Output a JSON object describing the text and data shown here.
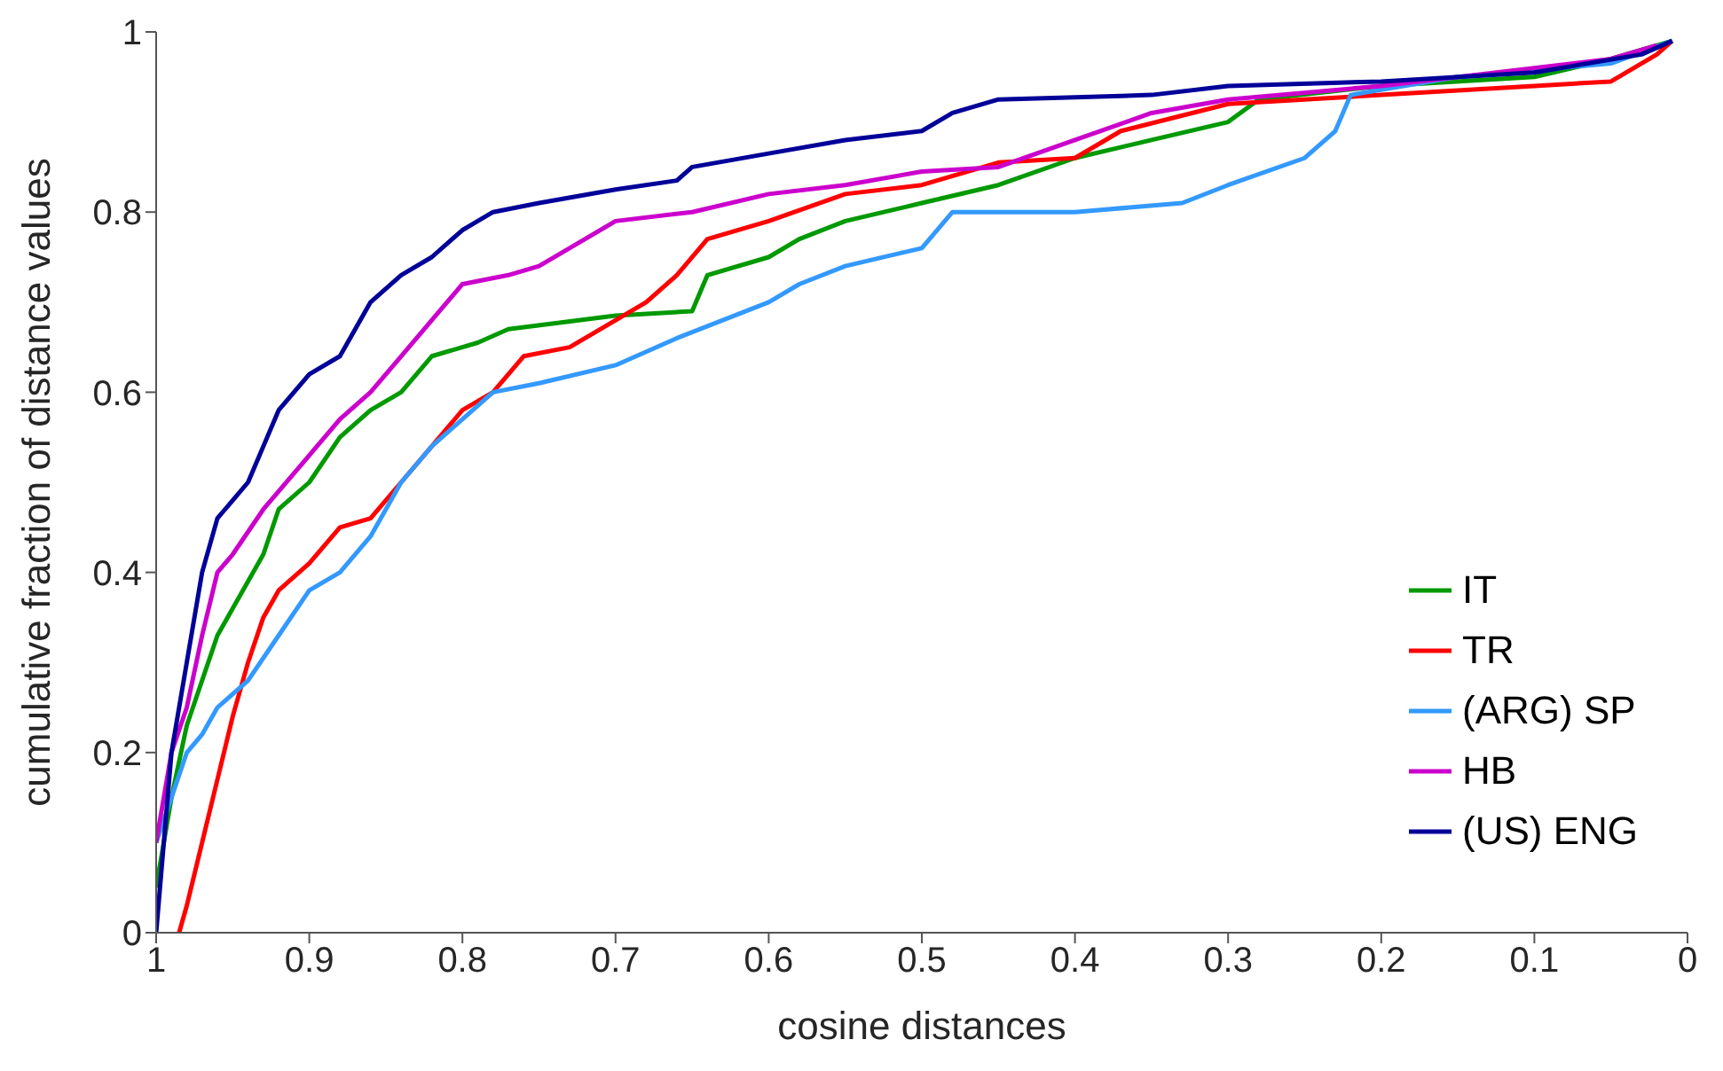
{
  "chart_data": {
    "type": "line",
    "xlabel": "cosine distances",
    "ylabel": "cumulative fraction of distance values",
    "xlim": [
      1,
      0
    ],
    "ylim": [
      0,
      1
    ],
    "xticks": [
      1,
      0.9,
      0.8,
      0.7,
      0.6,
      0.5,
      0.4,
      0.3,
      0.2,
      0.1,
      0
    ],
    "yticks": [
      0,
      0.2,
      0.4,
      0.6,
      0.8,
      1
    ],
    "grid": false,
    "legend": "bottom right",
    "marker": "none",
    "line_style": "solid",
    "series": [
      {
        "name": "IT",
        "color": "#009900",
        "x": [
          1,
          0.99,
          0.98,
          0.97,
          0.96,
          0.95,
          0.93,
          0.92,
          0.9,
          0.88,
          0.86,
          0.84,
          0.82,
          0.79,
          0.77,
          0.7,
          0.65,
          0.64,
          0.6,
          0.58,
          0.55,
          0.5,
          0.45,
          0.4,
          0.35,
          0.3,
          0.28,
          0.2,
          0.1,
          0.05,
          0.01
        ],
        "values": [
          0.05,
          0.15,
          0.23,
          0.28,
          0.33,
          0.36,
          0.42,
          0.47,
          0.5,
          0.55,
          0.58,
          0.6,
          0.64,
          0.655,
          0.67,
          0.685,
          0.69,
          0.73,
          0.75,
          0.77,
          0.79,
          0.81,
          0.83,
          0.86,
          0.88,
          0.9,
          0.925,
          0.94,
          0.95,
          0.97,
          0.99
        ]
      },
      {
        "name": "TR",
        "color": "#ff0000",
        "x": [
          0.985,
          0.98,
          0.97,
          0.96,
          0.95,
          0.94,
          0.93,
          0.92,
          0.9,
          0.88,
          0.86,
          0.84,
          0.82,
          0.8,
          0.78,
          0.76,
          0.73,
          0.71,
          0.68,
          0.66,
          0.64,
          0.6,
          0.55,
          0.5,
          0.45,
          0.4,
          0.37,
          0.3,
          0.2,
          0.1,
          0.05,
          0.02,
          0.01
        ],
        "values": [
          0,
          0.03,
          0.1,
          0.17,
          0.24,
          0.3,
          0.35,
          0.38,
          0.41,
          0.45,
          0.46,
          0.5,
          0.54,
          0.58,
          0.6,
          0.64,
          0.65,
          0.67,
          0.7,
          0.73,
          0.77,
          0.79,
          0.82,
          0.83,
          0.855,
          0.86,
          0.89,
          0.92,
          0.93,
          0.94,
          0.945,
          0.975,
          0.99
        ]
      },
      {
        "name": "(ARG) SP",
        "color": "#3399ff",
        "x": [
          1,
          0.99,
          0.98,
          0.97,
          0.96,
          0.94,
          0.92,
          0.9,
          0.88,
          0.86,
          0.84,
          0.82,
          0.8,
          0.78,
          0.75,
          0.7,
          0.66,
          0.6,
          0.58,
          0.55,
          0.5,
          0.48,
          0.4,
          0.33,
          0.3,
          0.25,
          0.23,
          0.22,
          0.15,
          0.05,
          0.01
        ],
        "values": [
          0.1,
          0.15,
          0.2,
          0.22,
          0.25,
          0.28,
          0.33,
          0.38,
          0.4,
          0.44,
          0.5,
          0.54,
          0.57,
          0.6,
          0.61,
          0.63,
          0.66,
          0.7,
          0.72,
          0.74,
          0.76,
          0.8,
          0.8,
          0.81,
          0.83,
          0.86,
          0.89,
          0.93,
          0.95,
          0.965,
          0.99
        ]
      },
      {
        "name": "HB",
        "color": "#cc00cc",
        "x": [
          1,
          0.99,
          0.98,
          0.97,
          0.96,
          0.95,
          0.93,
          0.9,
          0.88,
          0.86,
          0.84,
          0.82,
          0.8,
          0.77,
          0.75,
          0.73,
          0.7,
          0.65,
          0.6,
          0.55,
          0.5,
          0.45,
          0.4,
          0.35,
          0.3,
          0.2,
          0.1,
          0.05,
          0.02
        ],
        "values": [
          0.1,
          0.2,
          0.25,
          0.33,
          0.4,
          0.42,
          0.47,
          0.53,
          0.57,
          0.6,
          0.64,
          0.68,
          0.72,
          0.73,
          0.74,
          0.76,
          0.79,
          0.8,
          0.82,
          0.83,
          0.845,
          0.85,
          0.88,
          0.91,
          0.925,
          0.94,
          0.96,
          0.97,
          0.985
        ]
      },
      {
        "name": "(US) ENG",
        "color": "#000099",
        "x": [
          1,
          0.995,
          0.99,
          0.98,
          0.97,
          0.96,
          0.95,
          0.94,
          0.93,
          0.92,
          0.9,
          0.88,
          0.86,
          0.84,
          0.82,
          0.8,
          0.78,
          0.75,
          0.7,
          0.66,
          0.65,
          0.6,
          0.55,
          0.5,
          0.48,
          0.45,
          0.35,
          0.3,
          0.2,
          0.1,
          0.03,
          0.01
        ],
        "values": [
          0,
          0.1,
          0.2,
          0.3,
          0.4,
          0.46,
          0.48,
          0.5,
          0.54,
          0.58,
          0.62,
          0.64,
          0.7,
          0.73,
          0.75,
          0.78,
          0.8,
          0.81,
          0.825,
          0.835,
          0.85,
          0.865,
          0.88,
          0.89,
          0.91,
          0.925,
          0.93,
          0.94,
          0.945,
          0.955,
          0.975,
          0.99
        ]
      }
    ]
  }
}
